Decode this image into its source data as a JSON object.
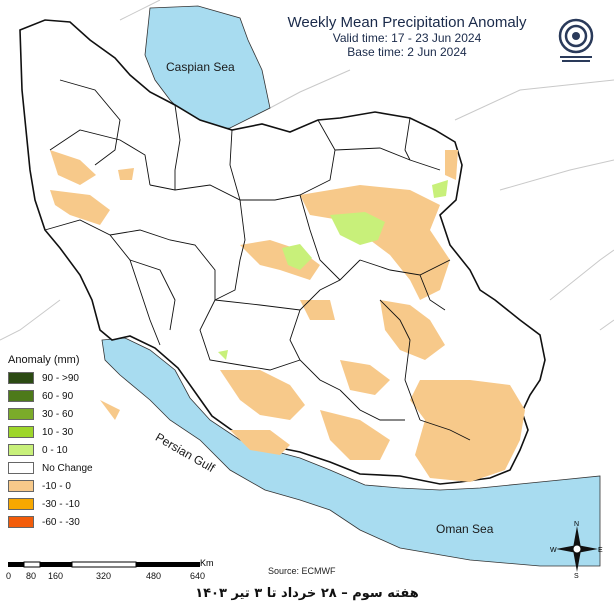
{
  "title": "Weekly Mean Precipitation Anomaly",
  "valid_time": "Valid time: 17 - 23 Jun 2024",
  "base_time": "Base time: 2 Jun 2024",
  "seas": {
    "caspian": "Caspian Sea",
    "persian": "Persian Gulf",
    "oman": "Oman Sea"
  },
  "legend": {
    "title": "Anomaly (mm)",
    "items": [
      {
        "label": "90 - >90",
        "color": "#2b4a12"
      },
      {
        "label": "60 - 90",
        "color": "#4d7a1a"
      },
      {
        "label": "30 - 60",
        "color": "#7bab2a"
      },
      {
        "label": "10 - 30",
        "color": "#9ed62a"
      },
      {
        "label": "0 - 10",
        "color": "#c8f07a"
      },
      {
        "label": "No Change",
        "color": "#ffffff"
      },
      {
        "label": "-10 - 0",
        "color": "#f7c98a"
      },
      {
        "label": "-30 - -10",
        "color": "#f7a800"
      },
      {
        "label": "-60 - -30",
        "color": "#f25c0a"
      }
    ]
  },
  "scale": {
    "unit": "Km",
    "ticks": [
      "0",
      "80",
      "160",
      "320",
      "480",
      "640"
    ]
  },
  "source": "Source: ECMWF",
  "north_arrow": {
    "n": "N",
    "s": "S",
    "e": "E",
    "w": "W"
  },
  "footer": "هفته سوم – ۲۸ خرداد تا ۳ تیر ۱۴۰۳",
  "colors": {
    "water": "#a8dcf0",
    "border": "#111111",
    "neighbor": "#cfcfcf"
  }
}
